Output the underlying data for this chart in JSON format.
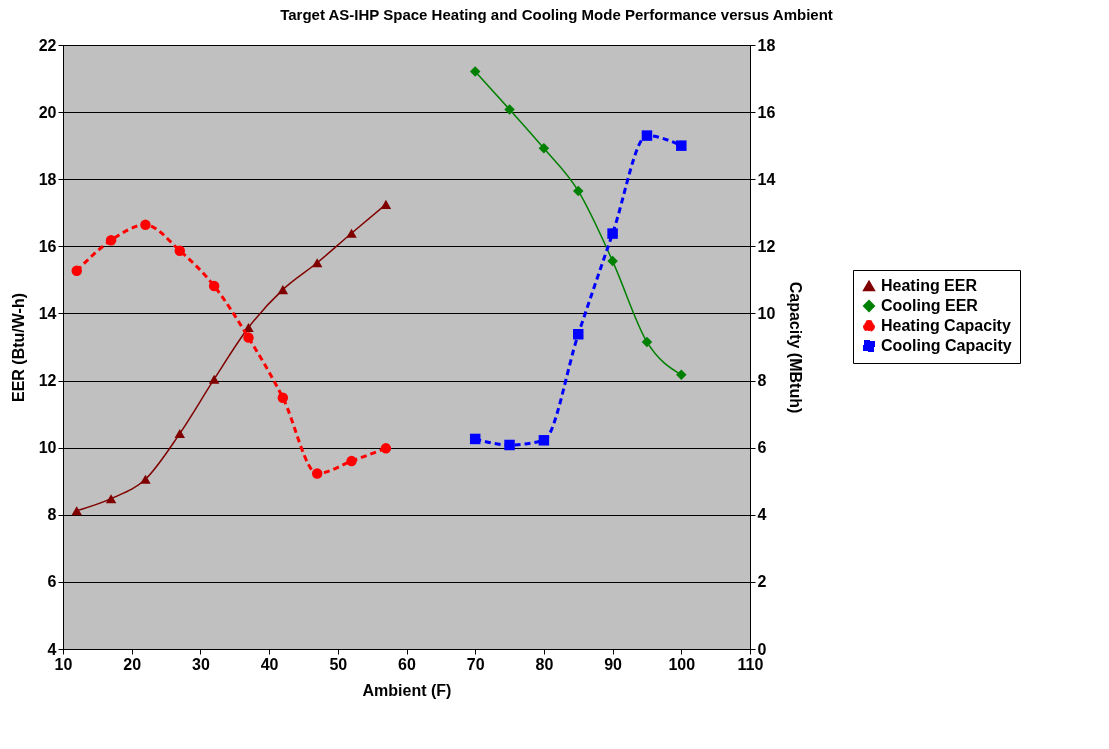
{
  "chart_data": {
    "type": "line",
    "title": "Target AS-IHP Space Heating and Cooling Mode Performance versus Ambient",
    "xlabel": "Ambient (F)",
    "ylabel": "EER (Btu/W-h)",
    "y2label": "Capacity (MBtuh)",
    "xlim": [
      10,
      110
    ],
    "xticks": [
      10,
      20,
      30,
      40,
      50,
      60,
      70,
      80,
      90,
      100,
      110
    ],
    "ylim": [
      4,
      22
    ],
    "yticks": [
      4,
      6,
      8,
      10,
      12,
      14,
      16,
      18,
      20,
      22
    ],
    "y2lim": [
      0,
      18
    ],
    "y2ticks": [
      0,
      2,
      4,
      6,
      8,
      10,
      12,
      14,
      16,
      18
    ],
    "grid": "y",
    "legend": "right",
    "series": [
      {
        "name": "Heating EER",
        "type": "line",
        "axis": "y",
        "color": "#800000",
        "marker": "triangle",
        "line_style": "solid",
        "x": [
          12,
          17,
          22,
          27,
          32,
          37,
          42,
          47,
          52,
          57
        ],
        "values": [
          8.12,
          8.48,
          9.06,
          10.42,
          12.04,
          13.58,
          14.71,
          15.51,
          16.39,
          17.25
        ]
      },
      {
        "name": "Cooling EER",
        "type": "line",
        "axis": "y",
        "color": "#008000",
        "marker": "diamond",
        "line_style": "solid",
        "x": [
          70,
          75,
          80,
          85,
          90,
          95,
          100
        ],
        "values": [
          21.21,
          20.08,
          18.92,
          17.65,
          15.56,
          13.15,
          12.17
        ]
      },
      {
        "name": "Heating Capacity",
        "type": "line",
        "axis": "y2",
        "color": "#ff0000",
        "marker": "circle",
        "line_style": "dashed",
        "x": [
          12,
          17,
          22,
          27,
          32,
          37,
          42,
          47,
          52,
          57
        ],
        "values": [
          11.27,
          12.18,
          12.64,
          11.87,
          10.82,
          9.28,
          7.49,
          5.23,
          5.6,
          5.98
        ]
      },
      {
        "name": "Cooling Capacity",
        "type": "line",
        "axis": "y2",
        "color": "#0000ff",
        "marker": "square",
        "line_style": "dashed",
        "x": [
          70,
          75,
          80,
          85,
          90,
          95,
          100
        ],
        "values": [
          6.26,
          6.08,
          6.22,
          9.38,
          12.38,
          15.3,
          15.0
        ]
      }
    ]
  }
}
